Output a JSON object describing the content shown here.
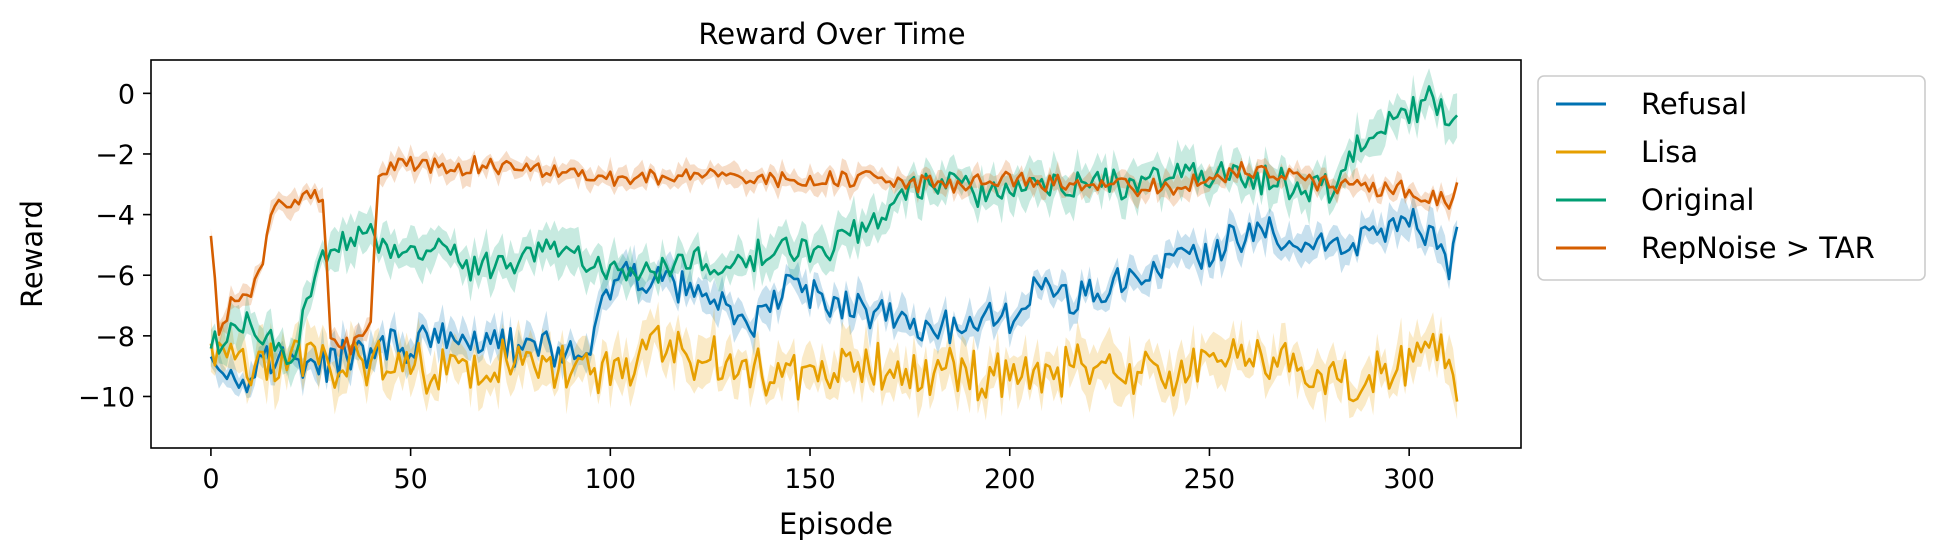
{
  "chart_data": {
    "type": "line",
    "title": "Reward Over Time",
    "xlabel": "Episode",
    "ylabel": "Reward",
    "xlim": [
      -15,
      328
    ],
    "ylim": [
      -11.7,
      1.1
    ],
    "xticks": [
      0,
      50,
      100,
      150,
      200,
      250,
      300
    ],
    "yticks": [
      0,
      -2,
      -4,
      -6,
      -8,
      -10
    ],
    "ytick_labels": [
      "0",
      "−2",
      "−4",
      "−6",
      "−8",
      "−10"
    ],
    "grid": false,
    "legend": "outside-right",
    "x_start": 0,
    "x_end": 312,
    "series": [
      {
        "name": "Refusal",
        "color": "#0072B2",
        "band": 0.5,
        "anchors": [
          [
            0,
            -8.3
          ],
          [
            5,
            -9.4
          ],
          [
            15,
            -8.8
          ],
          [
            25,
            -9.0
          ],
          [
            40,
            -8.5
          ],
          [
            60,
            -8.0
          ],
          [
            80,
            -8.5
          ],
          [
            95,
            -8.6
          ],
          [
            98,
            -6.5
          ],
          [
            105,
            -6.0
          ],
          [
            115,
            -6.3
          ],
          [
            125,
            -6.6
          ],
          [
            135,
            -8.0
          ],
          [
            145,
            -6.2
          ],
          [
            150,
            -6.8
          ],
          [
            160,
            -7.0
          ],
          [
            170,
            -7.3
          ],
          [
            180,
            -8.0
          ],
          [
            190,
            -7.5
          ],
          [
            200,
            -7.5
          ],
          [
            205,
            -6.5
          ],
          [
            215,
            -6.8
          ],
          [
            225,
            -6.5
          ],
          [
            235,
            -5.8
          ],
          [
            245,
            -5.5
          ],
          [
            255,
            -5.0
          ],
          [
            265,
            -4.5
          ],
          [
            275,
            -4.8
          ],
          [
            285,
            -5.2
          ],
          [
            295,
            -4.3
          ],
          [
            305,
            -4.6
          ],
          [
            310,
            -6.0
          ],
          [
            312,
            -4.1
          ]
        ],
        "noise": 0.55
      },
      {
        "name": "Lisa",
        "color": "#E69F00",
        "band": 0.7,
        "anchors": [
          [
            0,
            -8.2
          ],
          [
            10,
            -9.3
          ],
          [
            20,
            -8.7
          ],
          [
            40,
            -8.9
          ],
          [
            60,
            -9.0
          ],
          [
            80,
            -8.8
          ],
          [
            100,
            -9.2
          ],
          [
            110,
            -8.5
          ],
          [
            120,
            -8.8
          ],
          [
            130,
            -9.0
          ],
          [
            145,
            -9.5
          ],
          [
            160,
            -9.0
          ],
          [
            180,
            -9.2
          ],
          [
            200,
            -9.3
          ],
          [
            220,
            -9.0
          ],
          [
            240,
            -9.2
          ],
          [
            255,
            -8.8
          ],
          [
            265,
            -8.5
          ],
          [
            280,
            -9.5
          ],
          [
            300,
            -9.0
          ],
          [
            310,
            -8.5
          ],
          [
            312,
            -9.3
          ]
        ],
        "noise": 0.75
      },
      {
        "name": "Original",
        "color": "#009E73",
        "band": 0.6,
        "anchors": [
          [
            0,
            -8.4
          ],
          [
            10,
            -7.5
          ],
          [
            20,
            -8.8
          ],
          [
            25,
            -6.5
          ],
          [
            30,
            -5.0
          ],
          [
            35,
            -4.8
          ],
          [
            40,
            -4.3
          ],
          [
            45,
            -5.5
          ],
          [
            55,
            -5.0
          ],
          [
            65,
            -5.8
          ],
          [
            75,
            -5.5
          ],
          [
            85,
            -5.2
          ],
          [
            95,
            -5.6
          ],
          [
            105,
            -6.0
          ],
          [
            110,
            -5.8
          ],
          [
            120,
            -5.5
          ],
          [
            130,
            -6.0
          ],
          [
            140,
            -5.0
          ],
          [
            150,
            -5.3
          ],
          [
            160,
            -4.6
          ],
          [
            170,
            -4.0
          ],
          [
            175,
            -3.2
          ],
          [
            180,
            -3.0
          ],
          [
            190,
            -3.2
          ],
          [
            200,
            -3.4
          ],
          [
            210,
            -3.0
          ],
          [
            220,
            -2.9
          ],
          [
            230,
            -3.0
          ],
          [
            240,
            -2.8
          ],
          [
            250,
            -2.6
          ],
          [
            260,
            -2.8
          ],
          [
            270,
            -3.0
          ],
          [
            280,
            -3.2
          ],
          [
            285,
            -2.2
          ],
          [
            290,
            -1.5
          ],
          [
            295,
            -1.0
          ],
          [
            300,
            -0.7
          ],
          [
            305,
            -0.3
          ],
          [
            310,
            -0.8
          ],
          [
            312,
            -1.1
          ]
        ],
        "noise": 0.45
      },
      {
        "name": "RepNoise > TAR",
        "color": "#D55E00",
        "band": 0.35,
        "anchors": [
          [
            0,
            -4.7
          ],
          [
            2,
            -8.0
          ],
          [
            5,
            -7.0
          ],
          [
            10,
            -6.5
          ],
          [
            13,
            -5.5
          ],
          [
            16,
            -3.5
          ],
          [
            20,
            -3.6
          ],
          [
            28,
            -3.3
          ],
          [
            30,
            -8.0
          ],
          [
            35,
            -8.3
          ],
          [
            40,
            -7.5
          ],
          [
            42,
            -2.6
          ],
          [
            50,
            -2.3
          ],
          [
            60,
            -2.5
          ],
          [
            70,
            -2.4
          ],
          [
            80,
            -2.6
          ],
          [
            90,
            -2.5
          ],
          [
            100,
            -2.9
          ],
          [
            120,
            -2.7
          ],
          [
            140,
            -2.9
          ],
          [
            160,
            -2.8
          ],
          [
            180,
            -3.0
          ],
          [
            200,
            -2.9
          ],
          [
            220,
            -3.0
          ],
          [
            240,
            -3.1
          ],
          [
            260,
            -2.5
          ],
          [
            280,
            -3.0
          ],
          [
            300,
            -3.2
          ],
          [
            310,
            -3.6
          ],
          [
            312,
            -3.0
          ]
        ],
        "noise": 0.28
      }
    ]
  }
}
